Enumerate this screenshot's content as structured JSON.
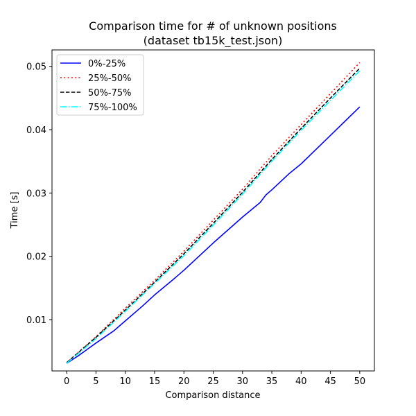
{
  "chart_data": {
    "type": "line",
    "title": "Comparison time for # of unknown positions",
    "subtitle": "(dataset tb15k_test.json)",
    "xlabel": "Comparison distance",
    "ylabel": "Time [s]",
    "xlim": [
      -2.5,
      52.5
    ],
    "ylim": [
      0.0019,
      0.0526
    ],
    "x_ticks": [
      0,
      5,
      10,
      15,
      20,
      25,
      30,
      35,
      40,
      45,
      50
    ],
    "x_tick_labels": [
      "0",
      "5",
      "10",
      "15",
      "20",
      "25",
      "30",
      "35",
      "40",
      "45",
      "50"
    ],
    "y_ticks": [
      0.01,
      0.02,
      0.03,
      0.04,
      0.05
    ],
    "y_tick_labels": [
      "0.01",
      "0.02",
      "0.03",
      "0.04",
      "0.05"
    ],
    "grid": false,
    "legend_position": "top-left",
    "series": [
      {
        "name": "0%-25%",
        "color": "#0000ff",
        "style": "solid",
        "x": [
          0,
          2,
          5,
          8,
          10,
          13,
          15,
          18,
          20,
          25,
          30,
          33,
          34,
          35,
          38,
          40,
          42,
          45,
          48,
          50
        ],
        "y": [
          0.0031,
          0.0043,
          0.0063,
          0.0082,
          0.0098,
          0.0122,
          0.0139,
          0.0162,
          0.0178,
          0.0221,
          0.0262,
          0.0285,
          0.0297,
          0.0305,
          0.0331,
          0.0346,
          0.0364,
          0.0391,
          0.0418,
          0.0436
        ]
      },
      {
        "name": "25%-50%",
        "color": "#ff0000",
        "style": "dotted",
        "x": [
          0,
          5,
          10,
          15,
          20,
          25,
          30,
          35,
          40,
          45,
          50
        ],
        "y": [
          0.0032,
          0.0073,
          0.0118,
          0.0162,
          0.0208,
          0.0257,
          0.0306,
          0.0359,
          0.0408,
          0.0457,
          0.0506
        ]
      },
      {
        "name": "50%-75%",
        "color": "#000000",
        "style": "dashed",
        "x": [
          0,
          5,
          10,
          15,
          20,
          25,
          30,
          35,
          40,
          45,
          50
        ],
        "y": [
          0.0032,
          0.0072,
          0.0115,
          0.0159,
          0.0204,
          0.0252,
          0.0301,
          0.0353,
          0.0402,
          0.045,
          0.0497
        ]
      },
      {
        "name": "75%-100%",
        "color": "#00ffff",
        "style": "dashdot",
        "x": [
          0,
          5,
          10,
          15,
          20,
          25,
          30,
          35,
          40,
          45,
          50
        ],
        "y": [
          0.0031,
          0.007,
          0.0113,
          0.0157,
          0.0201,
          0.0249,
          0.0298,
          0.035,
          0.0399,
          0.0446,
          0.0493
        ]
      }
    ]
  }
}
